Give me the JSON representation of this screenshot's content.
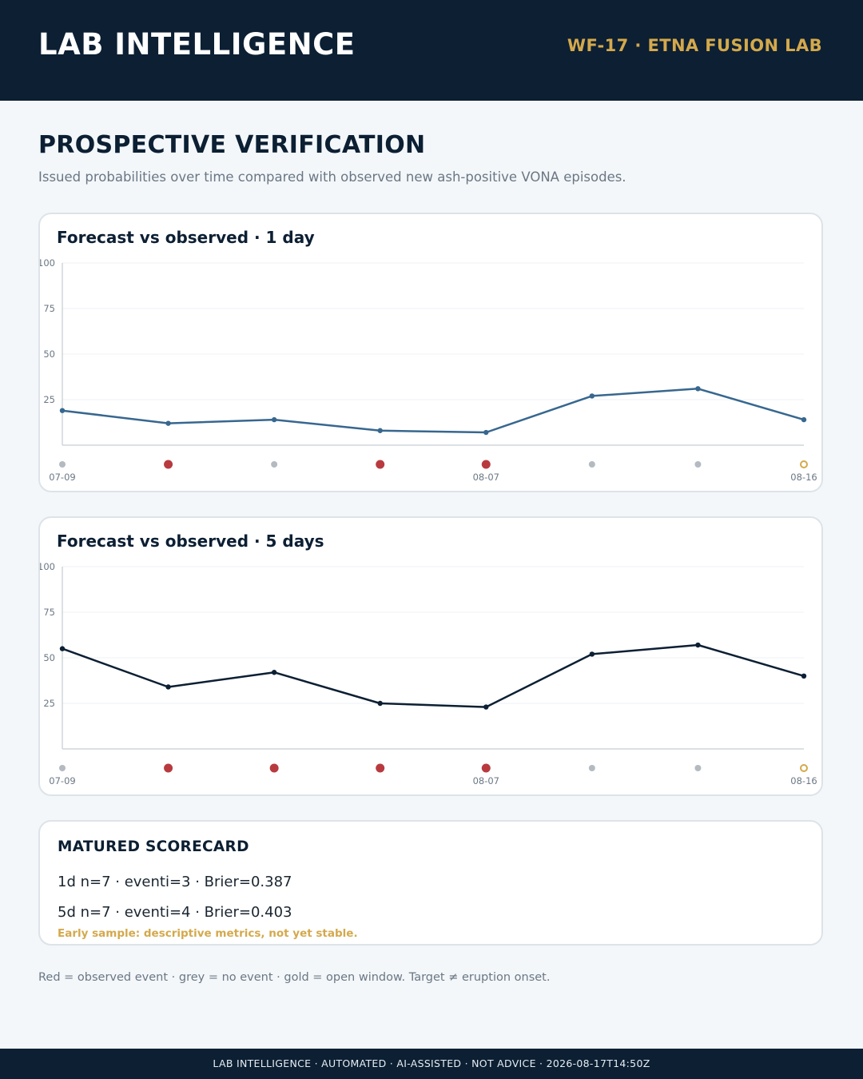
{
  "header": {
    "brand": "LAB INTELLIGENCE",
    "lab_id": "WF-17 · ETNA FUSION LAB"
  },
  "page": {
    "title": "PROSPECTIVE VERIFICATION",
    "subtitle": "Issued probabilities over time compared with observed new ash-positive VONA episodes."
  },
  "colors": {
    "header_bg": "#0c1f33",
    "accent_gold": "#d4a94c",
    "series_1d": "#37678f",
    "series_5d": "#0c1f33",
    "event": "#b83a3f",
    "no_event": "#b4bac1",
    "open_window": "#d4a94c"
  },
  "chart_data": [
    {
      "type": "line",
      "title": "Forecast vs observed · 1 day",
      "x_tick_labels": [
        "07-09",
        "08-07",
        "08-16"
      ],
      "x_tick_positions": [
        0,
        4,
        7
      ],
      "y_ticks": [
        25,
        50,
        75,
        100
      ],
      "ylim": [
        0,
        100
      ],
      "grid": true,
      "series": [
        {
          "values": [
            19,
            12,
            14,
            8,
            7,
            27,
            31,
            14
          ]
        }
      ],
      "outcomes": [
        "no_event",
        "event",
        "no_event",
        "event",
        "event",
        "no_event",
        "no_event",
        "open"
      ]
    },
    {
      "type": "line",
      "title": "Forecast vs observed · 5 days",
      "x_tick_labels": [
        "07-09",
        "08-07",
        "08-16"
      ],
      "x_tick_positions": [
        0,
        4,
        7
      ],
      "y_ticks": [
        25,
        50,
        75,
        100
      ],
      "ylim": [
        0,
        100
      ],
      "grid": true,
      "series": [
        {
          "values": [
            55,
            34,
            42,
            25,
            23,
            52,
            57,
            40
          ]
        }
      ],
      "outcomes": [
        "no_event",
        "event",
        "event",
        "event",
        "event",
        "no_event",
        "no_event",
        "open"
      ]
    }
  ],
  "scorecard": {
    "title": "MATURED SCORECARD",
    "rows": [
      "1d  n=7 · eventi=3 · Brier=0.387",
      "5d  n=7 · eventi=4 · Brier=0.403"
    ],
    "note": "Early sample: descriptive metrics, not yet stable."
  },
  "legend": "Red = observed event · grey = no event · gold = open window. Target ≠ eruption onset.",
  "footer": "LAB INTELLIGENCE · AUTOMATED · AI-ASSISTED · NOT ADVICE · 2026-08-17T14:50Z"
}
